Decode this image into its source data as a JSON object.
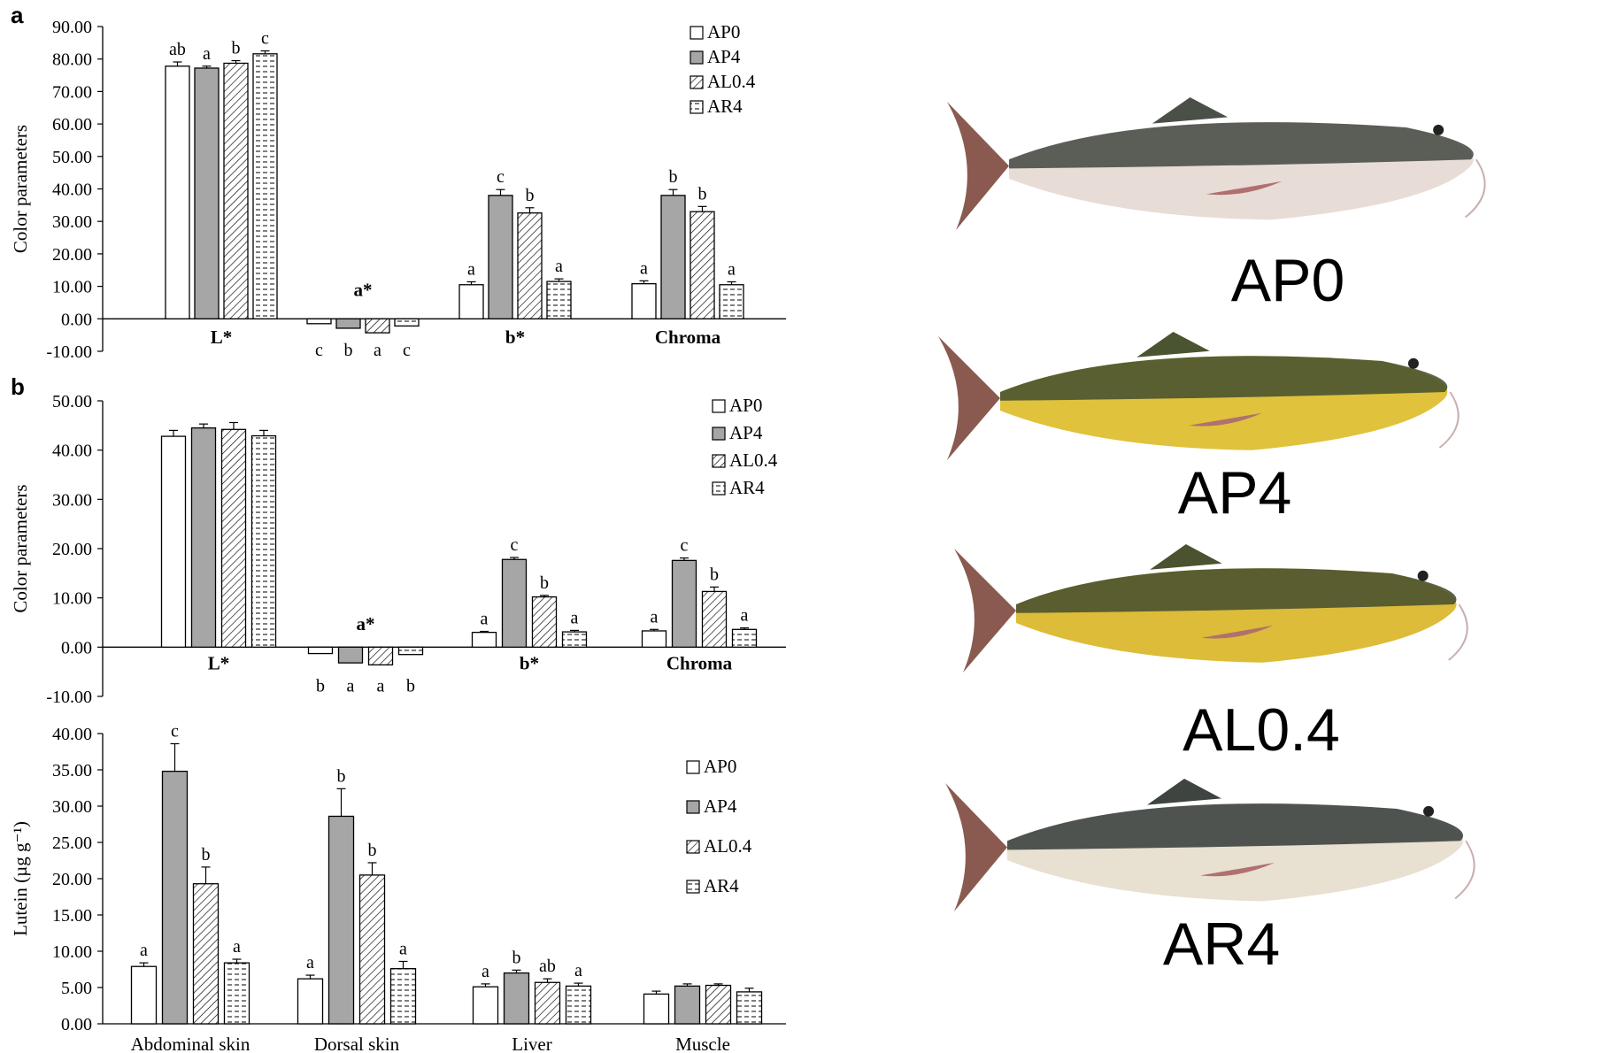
{
  "panel_labels": {
    "a": "a",
    "b": "b"
  },
  "legend_labels": [
    "AP0",
    "AP4",
    "AL0.4",
    "AR4"
  ],
  "colors": {
    "ap0": "#ffffff",
    "ap4": "#a6a6a6",
    "bar_stroke": "#000000",
    "axis": "#000000"
  },
  "chart_data": [
    {
      "id": "panel-a",
      "type": "bar",
      "title": "",
      "ylabel": "Color parameters",
      "xlabel": "",
      "ylim": [
        -10,
        90
      ],
      "ytick_step": 10,
      "tick_decimals": 2,
      "categories": [
        "L*",
        "a*",
        "b*",
        "Chroma"
      ],
      "series": [
        {
          "name": "AP0",
          "values": [
            77.8,
            -1.5,
            10.5,
            10.8
          ],
          "errors": [
            1.3,
            0.3,
            0.9,
            0.9
          ],
          "letters": [
            "ab",
            "c",
            "a",
            "a"
          ]
        },
        {
          "name": "AP4",
          "values": [
            77.2,
            -2.9,
            38.0,
            38.0
          ],
          "errors": [
            0.6,
            0.3,
            1.8,
            1.8
          ],
          "letters": [
            "a",
            "b",
            "c",
            "b"
          ]
        },
        {
          "name": "AL0.4",
          "values": [
            78.7,
            -4.3,
            32.6,
            33.0
          ],
          "errors": [
            0.8,
            0.3,
            1.6,
            1.6
          ],
          "letters": [
            "b",
            "a",
            "b",
            "b"
          ]
        },
        {
          "name": "AR4",
          "values": [
            81.6,
            -2.2,
            11.5,
            10.5
          ],
          "errors": [
            0.9,
            0.3,
            0.8,
            0.9
          ],
          "letters": [
            "c",
            "c",
            "a",
            "a"
          ]
        }
      ]
    },
    {
      "id": "panel-b",
      "type": "bar",
      "title": "",
      "ylabel": "Color parameters",
      "xlabel": "",
      "ylim": [
        -10,
        50
      ],
      "ytick_step": 10,
      "tick_decimals": 2,
      "categories": [
        "L*",
        "a*",
        "b*",
        "Chroma"
      ],
      "series": [
        {
          "name": "AP0",
          "values": [
            42.8,
            -1.3,
            3.0,
            3.3
          ],
          "errors": [
            1.2,
            0.2,
            0.2,
            0.3
          ],
          "letters": [
            "",
            "b",
            "a",
            "a"
          ]
        },
        {
          "name": "AP4",
          "values": [
            44.5,
            -3.2,
            17.8,
            17.6
          ],
          "errors": [
            0.8,
            0.2,
            0.4,
            0.5
          ],
          "letters": [
            "",
            "a",
            "c",
            "c"
          ]
        },
        {
          "name": "AL0.4",
          "values": [
            44.2,
            -3.6,
            10.2,
            11.3
          ],
          "errors": [
            1.4,
            0.2,
            0.3,
            0.9
          ],
          "letters": [
            "",
            "a",
            "b",
            "b"
          ]
        },
        {
          "name": "AR4",
          "values": [
            42.9,
            -1.5,
            3.1,
            3.6
          ],
          "errors": [
            1.1,
            0.2,
            0.3,
            0.3
          ],
          "letters": [
            "",
            "b",
            "a",
            "a"
          ]
        }
      ]
    },
    {
      "id": "panel-lutein",
      "type": "bar",
      "title": "",
      "ylabel": "Lutein (µg g⁻¹)",
      "xlabel": "",
      "ylim": [
        0,
        40
      ],
      "ytick_step": 5,
      "tick_decimals": 2,
      "categories": [
        "Abdominal skin",
        "Dorsal skin",
        "Liver",
        "Muscle"
      ],
      "series": [
        {
          "name": "AP0",
          "values": [
            7.9,
            6.2,
            5.1,
            4.1
          ],
          "errors": [
            0.5,
            0.5,
            0.4,
            0.4
          ],
          "letters": [
            "a",
            "a",
            "a",
            ""
          ]
        },
        {
          "name": "AP4",
          "values": [
            34.8,
            28.6,
            7.0,
            5.2
          ],
          "errors": [
            3.8,
            3.8,
            0.4,
            0.3
          ],
          "letters": [
            "c",
            "b",
            "b",
            ""
          ]
        },
        {
          "name": "AL0.4",
          "values": [
            19.3,
            20.5,
            5.7,
            5.3
          ],
          "errors": [
            2.3,
            1.7,
            0.5,
            0.2
          ],
          "letters": [
            "b",
            "b",
            "ab",
            ""
          ]
        },
        {
          "name": "AR4",
          "values": [
            8.4,
            7.6,
            5.2,
            4.4
          ],
          "errors": [
            0.5,
            1.0,
            0.4,
            0.5
          ],
          "letters": [
            "a",
            "a",
            "a",
            ""
          ]
        }
      ]
    }
  ],
  "photos": {
    "labels": [
      "AP0",
      "AP4",
      "AL0.4",
      "AR4"
    ],
    "body_colors": [
      "#e8dcd6",
      "#e0c23c",
      "#dcbc38",
      "#e8e0d0"
    ],
    "back_colors": [
      "#4a5048",
      "#4a5430",
      "#4a5230",
      "#3e4440"
    ]
  }
}
